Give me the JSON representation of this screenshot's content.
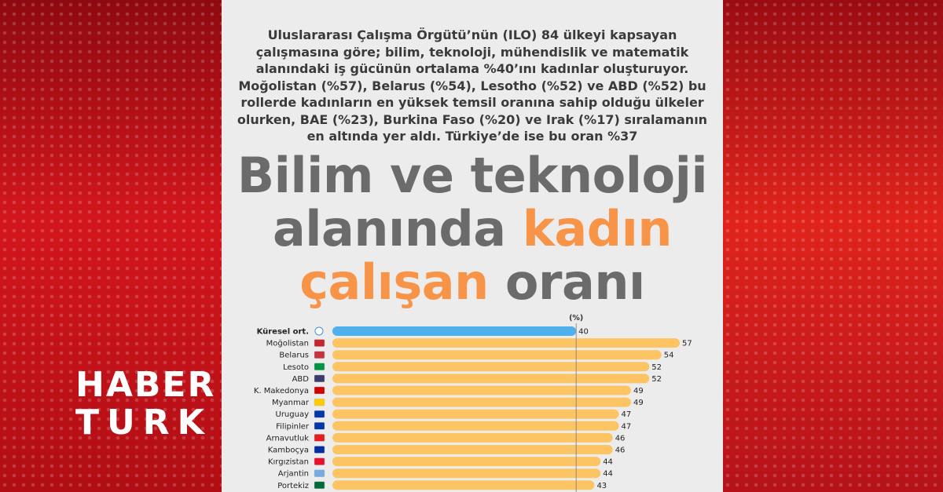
{
  "brand": {
    "line1": "HABER",
    "line2": "TURK"
  },
  "intro_text": "Uluslararası Çalışma Örgütü’nün (ILO) 84 ülkeyi kapsayan çalışmasına göre; bilim, teknoloji, mühendislik ve matematik alanındaki iş gücünün ortalama %40’ını kadınlar oluşturuyor. Moğolistan (%57), Belarus (%54), Lesotho (%52) ve ABD (%52) bu rollerde kadınların en yüksek temsil oranına sahip olduğu ülkeler olurken, BAE (%23), Burkina Faso (%20) ve Irak (%17) sıralamanın en altında yer aldı. Türkiye’de ise bu oran %37",
  "headline": {
    "line1": "Bilim ve teknoloji",
    "line2_plain": "alanında ",
    "line2_highlight": "kadın",
    "line3_highlight": "çalışan",
    "line3_plain": " oranı"
  },
  "colors": {
    "global_bar": "#4fb0ec",
    "country_bar": "#fcc463",
    "accent": "#f79447",
    "reference_line": "#7a7a7a"
  },
  "chart_data": {
    "type": "bar",
    "orientation": "horizontal",
    "unit_label": "(%)",
    "categories": [
      "Küresel ort.",
      "Moğolistan",
      "Belarus",
      "Lesoto",
      "ABD",
      "K. Makedonya",
      "Myanmar",
      "Uruguay",
      "Filipinler",
      "Arnavutluk",
      "Kamboçya",
      "Kırgızistan",
      "Arjantin",
      "Portekiz"
    ],
    "values": [
      40,
      57,
      54,
      52,
      52,
      49,
      49,
      47,
      47,
      46,
      46,
      44,
      44,
      43
    ],
    "flag_icons": [
      "globe-icon",
      "mongolia-flag-icon",
      "belarus-flag-icon",
      "lesotho-flag-icon",
      "usa-flag-icon",
      "north-macedonia-flag-icon",
      "myanmar-flag-icon",
      "uruguay-flag-icon",
      "philippines-flag-icon",
      "albania-flag-icon",
      "cambodia-flag-icon",
      "kyrgyzstan-flag-icon",
      "argentina-flag-icon",
      "portugal-flag-icon"
    ],
    "reference_value": 40,
    "xlim": [
      0,
      57
    ],
    "grid": false
  }
}
